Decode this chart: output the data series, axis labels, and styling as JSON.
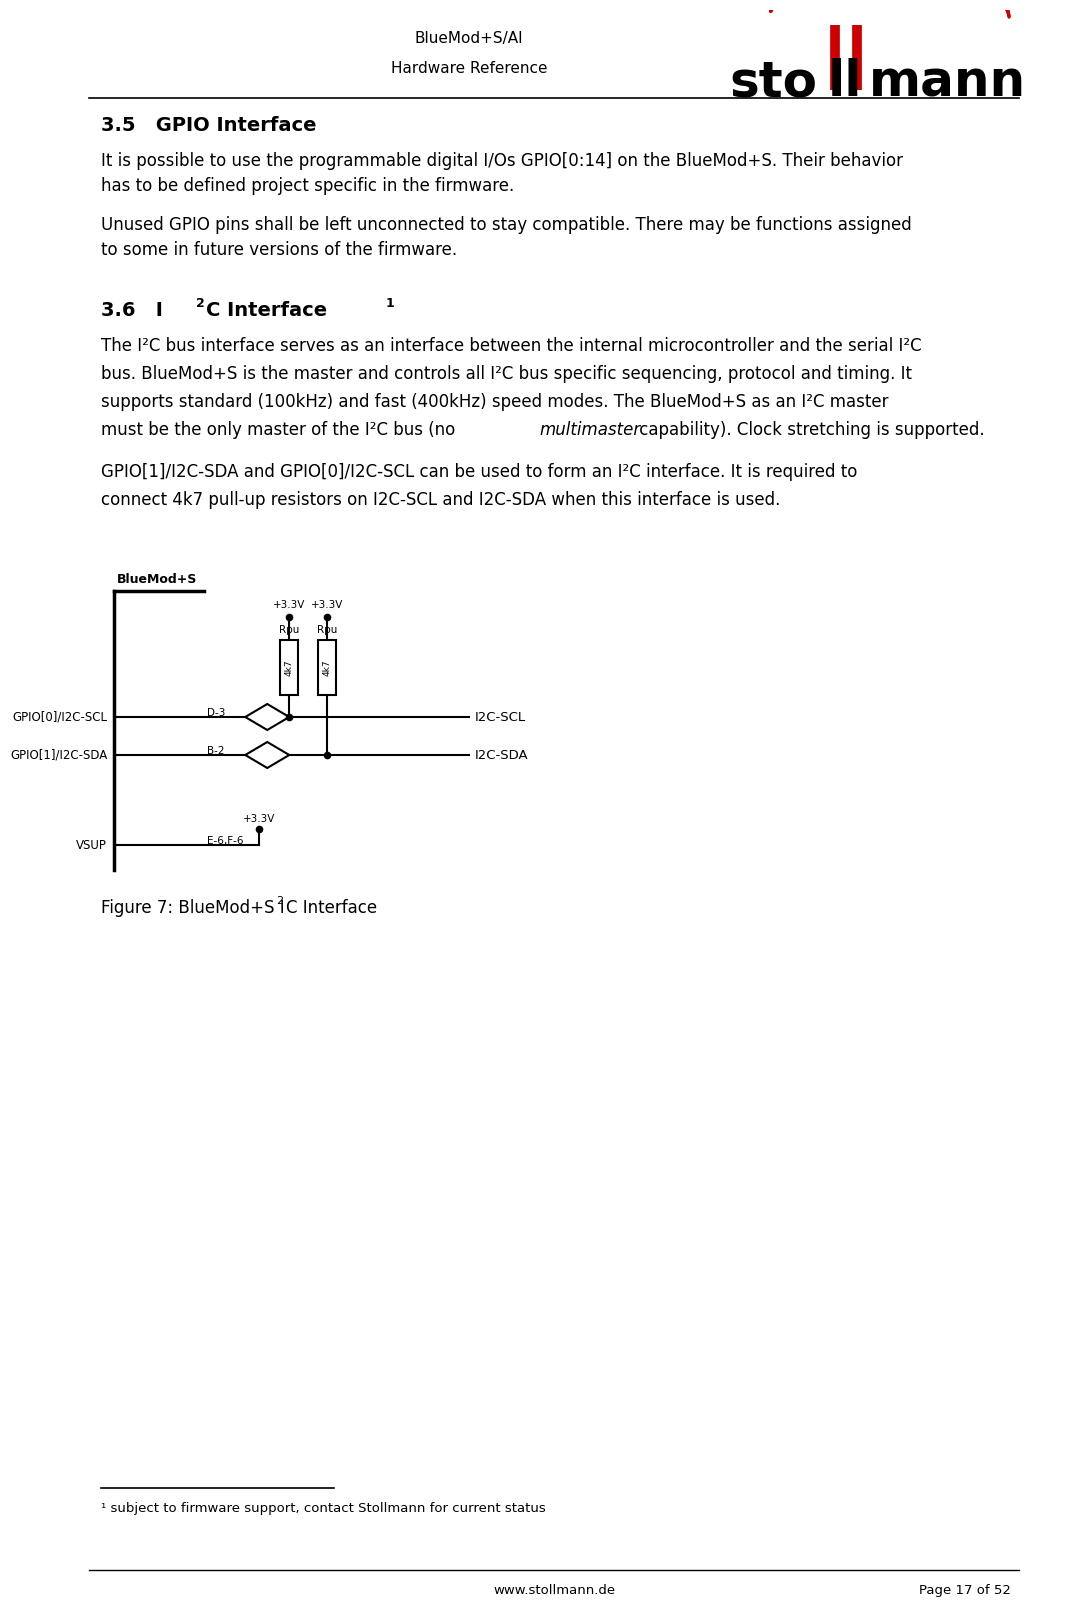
{
  "page_title1": "BlueMod+S/AI",
  "page_title2": "Hardware Reference",
  "section35_title": "3.5   GPIO Interface",
  "section35_p1a": "It is possible to use the programmable digital I/Os GPIO[0:14] on the BlueMod+S. Their behavior",
  "section35_p1b": "has to be defined project specific in the firmware.",
  "section35_p2a": "Unused GPIO pins shall be left unconnected to stay compatible. There may be functions assigned",
  "section35_p2b": "to some in future versions of the firmware.",
  "section36_title_part1": "3.6   I",
  "section36_title_super1": "2",
  "section36_title_part2": "C Interface",
  "section36_title_super2": "1",
  "p36_line1": "The I²C bus interface serves as an interface between the internal microcontroller and the serial I²C",
  "p36_line2": "bus. BlueMod+S is the master and controls all I²C bus specific sequencing, protocol and timing. It",
  "p36_line3": "supports standard (100kHz) and fast (400kHz) speed modes. The BlueMod+S as an I²C master",
  "p36_line4a": "must be the only master of the I²C bus (no ",
  "p36_line4b": "multimaster",
  "p36_line4c": " capability). Clock stretching is supported.",
  "p36_line5": "GPIO[1]/I2C-SDA and GPIO[0]/I2C-SCL can be used to form an I²C interface. It is required to",
  "p36_line6": "connect 4k7 pull-up resistors on I2C-SCL and I2C-SDA when this interface is used.",
  "bms_label": "BlueMod+S",
  "pin_scl_label": "GPIO[0]/I2C-SCL",
  "pin_sda_label": "GPIO[1]/I2C-SDA",
  "pin_vsup_label": "VSUP",
  "scl_pin": "D-3",
  "sda_pin": "B-2",
  "vsup_pin": "E-6,F-6",
  "v33": "+3.3V",
  "rpu": "Rpu",
  "res_val": "4k7",
  "out_scl": "I2C-SCL",
  "out_sda": "I2C-SDA",
  "figure_caption_part1": "Figure 7: BlueMod+S I",
  "figure_caption_super": "2",
  "figure_caption_part2": "C Interface",
  "footnote": "¹ subject to firmware support, contact Stollmann for current status",
  "footer_url": "www.stollmann.de",
  "footer_page": "Page 17 of 52",
  "bg_color": "#ffffff",
  "text_color": "#000000",
  "logo_red": "#cc0000"
}
